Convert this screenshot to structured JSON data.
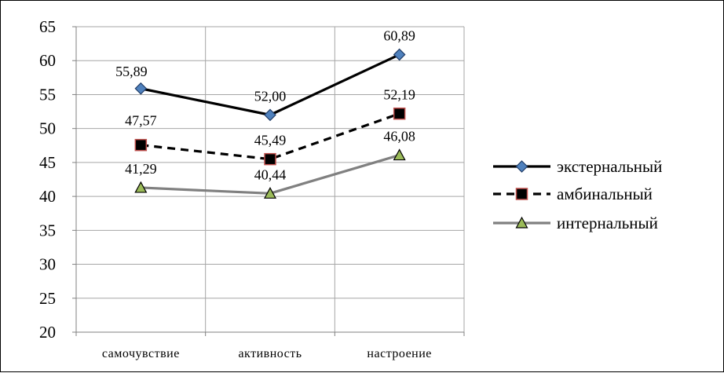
{
  "chart_data": {
    "type": "line",
    "categories": [
      "самочувствие",
      "активность",
      "настроение"
    ],
    "ylim": [
      20,
      65
    ],
    "ytick_step": 5,
    "y_ticks": [
      "20",
      "25",
      "30",
      "35",
      "40",
      "45",
      "50",
      "55",
      "60",
      "65"
    ],
    "grid": true,
    "legend_position": "right",
    "series": [
      {
        "name": "экстернальный",
        "values": [
          55.89,
          52.0,
          60.89
        ],
        "labels": [
          "55,89",
          "52,00",
          "60,89"
        ],
        "color": "#000000",
        "line_style": "solid",
        "marker": "diamond",
        "marker_fill": "#4f81bd",
        "marker_stroke": "#1f3b66"
      },
      {
        "name": "амбинальный",
        "values": [
          47.57,
          45.49,
          52.19
        ],
        "labels": [
          "47,57",
          "45,49",
          "52,19"
        ],
        "color": "#000000",
        "line_style": "dashed",
        "marker": "square",
        "marker_fill": "#000000",
        "marker_stroke": "#c0504d"
      },
      {
        "name": "интернальный",
        "values": [
          41.29,
          40.44,
          46.08
        ],
        "labels": [
          "41,29",
          "40,44",
          "46,08"
        ],
        "color": "#808080",
        "line_style": "solid",
        "marker": "triangle",
        "marker_fill": "#9bbb59",
        "marker_stroke": "#000000"
      }
    ]
  }
}
